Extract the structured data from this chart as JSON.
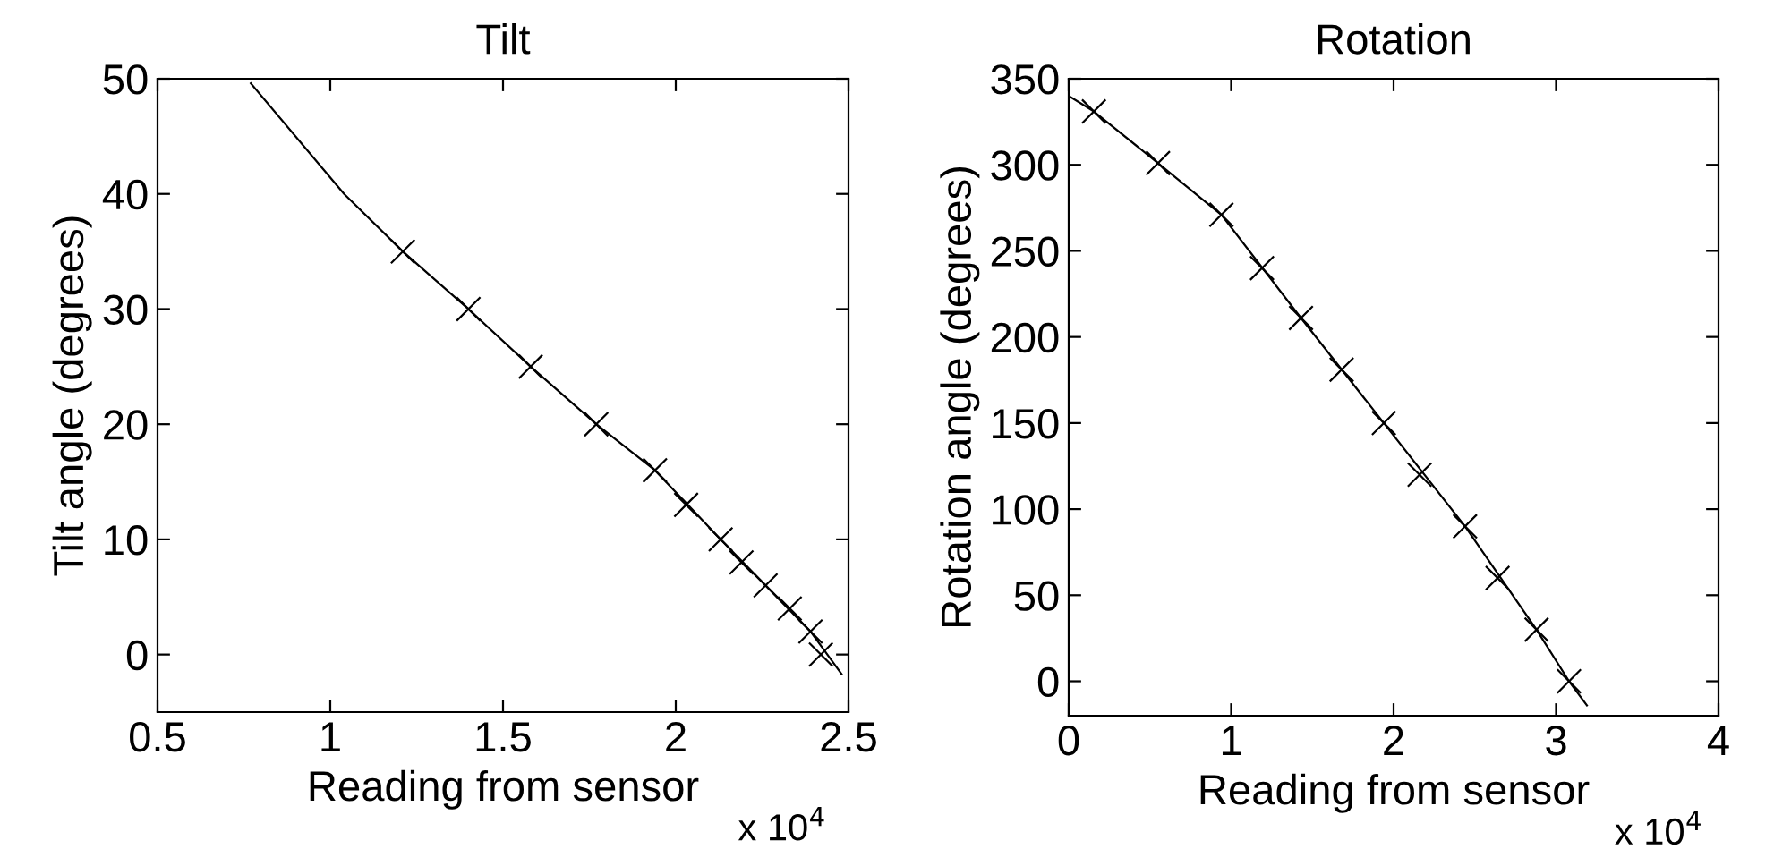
{
  "chart_data": [
    {
      "type": "scatter",
      "title": "Tilt",
      "xlabel": "Reading from sensor",
      "ylabel": "Tilt angle (degrees)",
      "annotations": [
        "x 10$^{4}$"
      ],
      "xlim": [
        0.5,
        2.5
      ],
      "xticks": [
        0.5,
        1,
        1.5,
        2,
        2.5
      ],
      "ylim": [
        -5,
        50
      ],
      "yticks": [
        0,
        10,
        20,
        30,
        40,
        50
      ],
      "grid": false,
      "legend": false,
      "series": [
        {
          "type": "scatter",
          "marker": "cross",
          "color": "#000000",
          "x": [
            1.21,
            1.4,
            1.58,
            1.77,
            1.94,
            2.03,
            2.13,
            2.19,
            2.26,
            2.33,
            2.39,
            2.42
          ],
          "values": [
            35,
            30,
            25,
            20,
            16,
            13,
            10,
            8,
            6,
            4,
            2,
            0
          ]
        },
        {
          "type": "line",
          "marker": "none",
          "line_style": "solid",
          "color": "#000000",
          "x": [
            0.77,
            1.04,
            1.21,
            1.4,
            1.58,
            1.77,
            1.94,
            2.13,
            2.26,
            2.39,
            2.48
          ],
          "values": [
            49.6,
            40,
            35,
            30,
            25,
            20,
            16,
            10,
            6,
            2,
            -1.7
          ]
        }
      ]
    },
    {
      "type": "scatter",
      "title": "Rotation",
      "xlabel": "Reading from sensor",
      "ylabel": "Rotation angle (degrees)",
      "annotations": [
        "x 10$^{4}$"
      ],
      "xlim": [
        0,
        4
      ],
      "xticks": [
        0,
        1,
        2,
        3,
        4
      ],
      "ylim": [
        -20,
        350
      ],
      "yticks": [
        0,
        50,
        100,
        150,
        200,
        250,
        300,
        350
      ],
      "grid": false,
      "legend": false,
      "series": [
        {
          "type": "scatter",
          "marker": "cross",
          "color": "#000000",
          "x": [
            0.155,
            0.55,
            0.94,
            1.19,
            1.43,
            1.68,
            1.94,
            2.16,
            2.44,
            2.64,
            2.88,
            3.08
          ],
          "values": [
            331,
            301,
            271,
            240,
            211,
            181,
            150,
            120,
            90,
            60,
            30,
            0
          ]
        },
        {
          "type": "line",
          "marker": "none",
          "line_style": "solid",
          "color": "#000000",
          "x": [
            0,
            0.155,
            0.55,
            0.94,
            1.43,
            1.94,
            2.44,
            2.88,
            3.08,
            3.19
          ],
          "values": [
            340,
            331,
            301,
            271,
            211,
            150,
            90,
            30,
            0,
            -14
          ]
        }
      ]
    }
  ]
}
